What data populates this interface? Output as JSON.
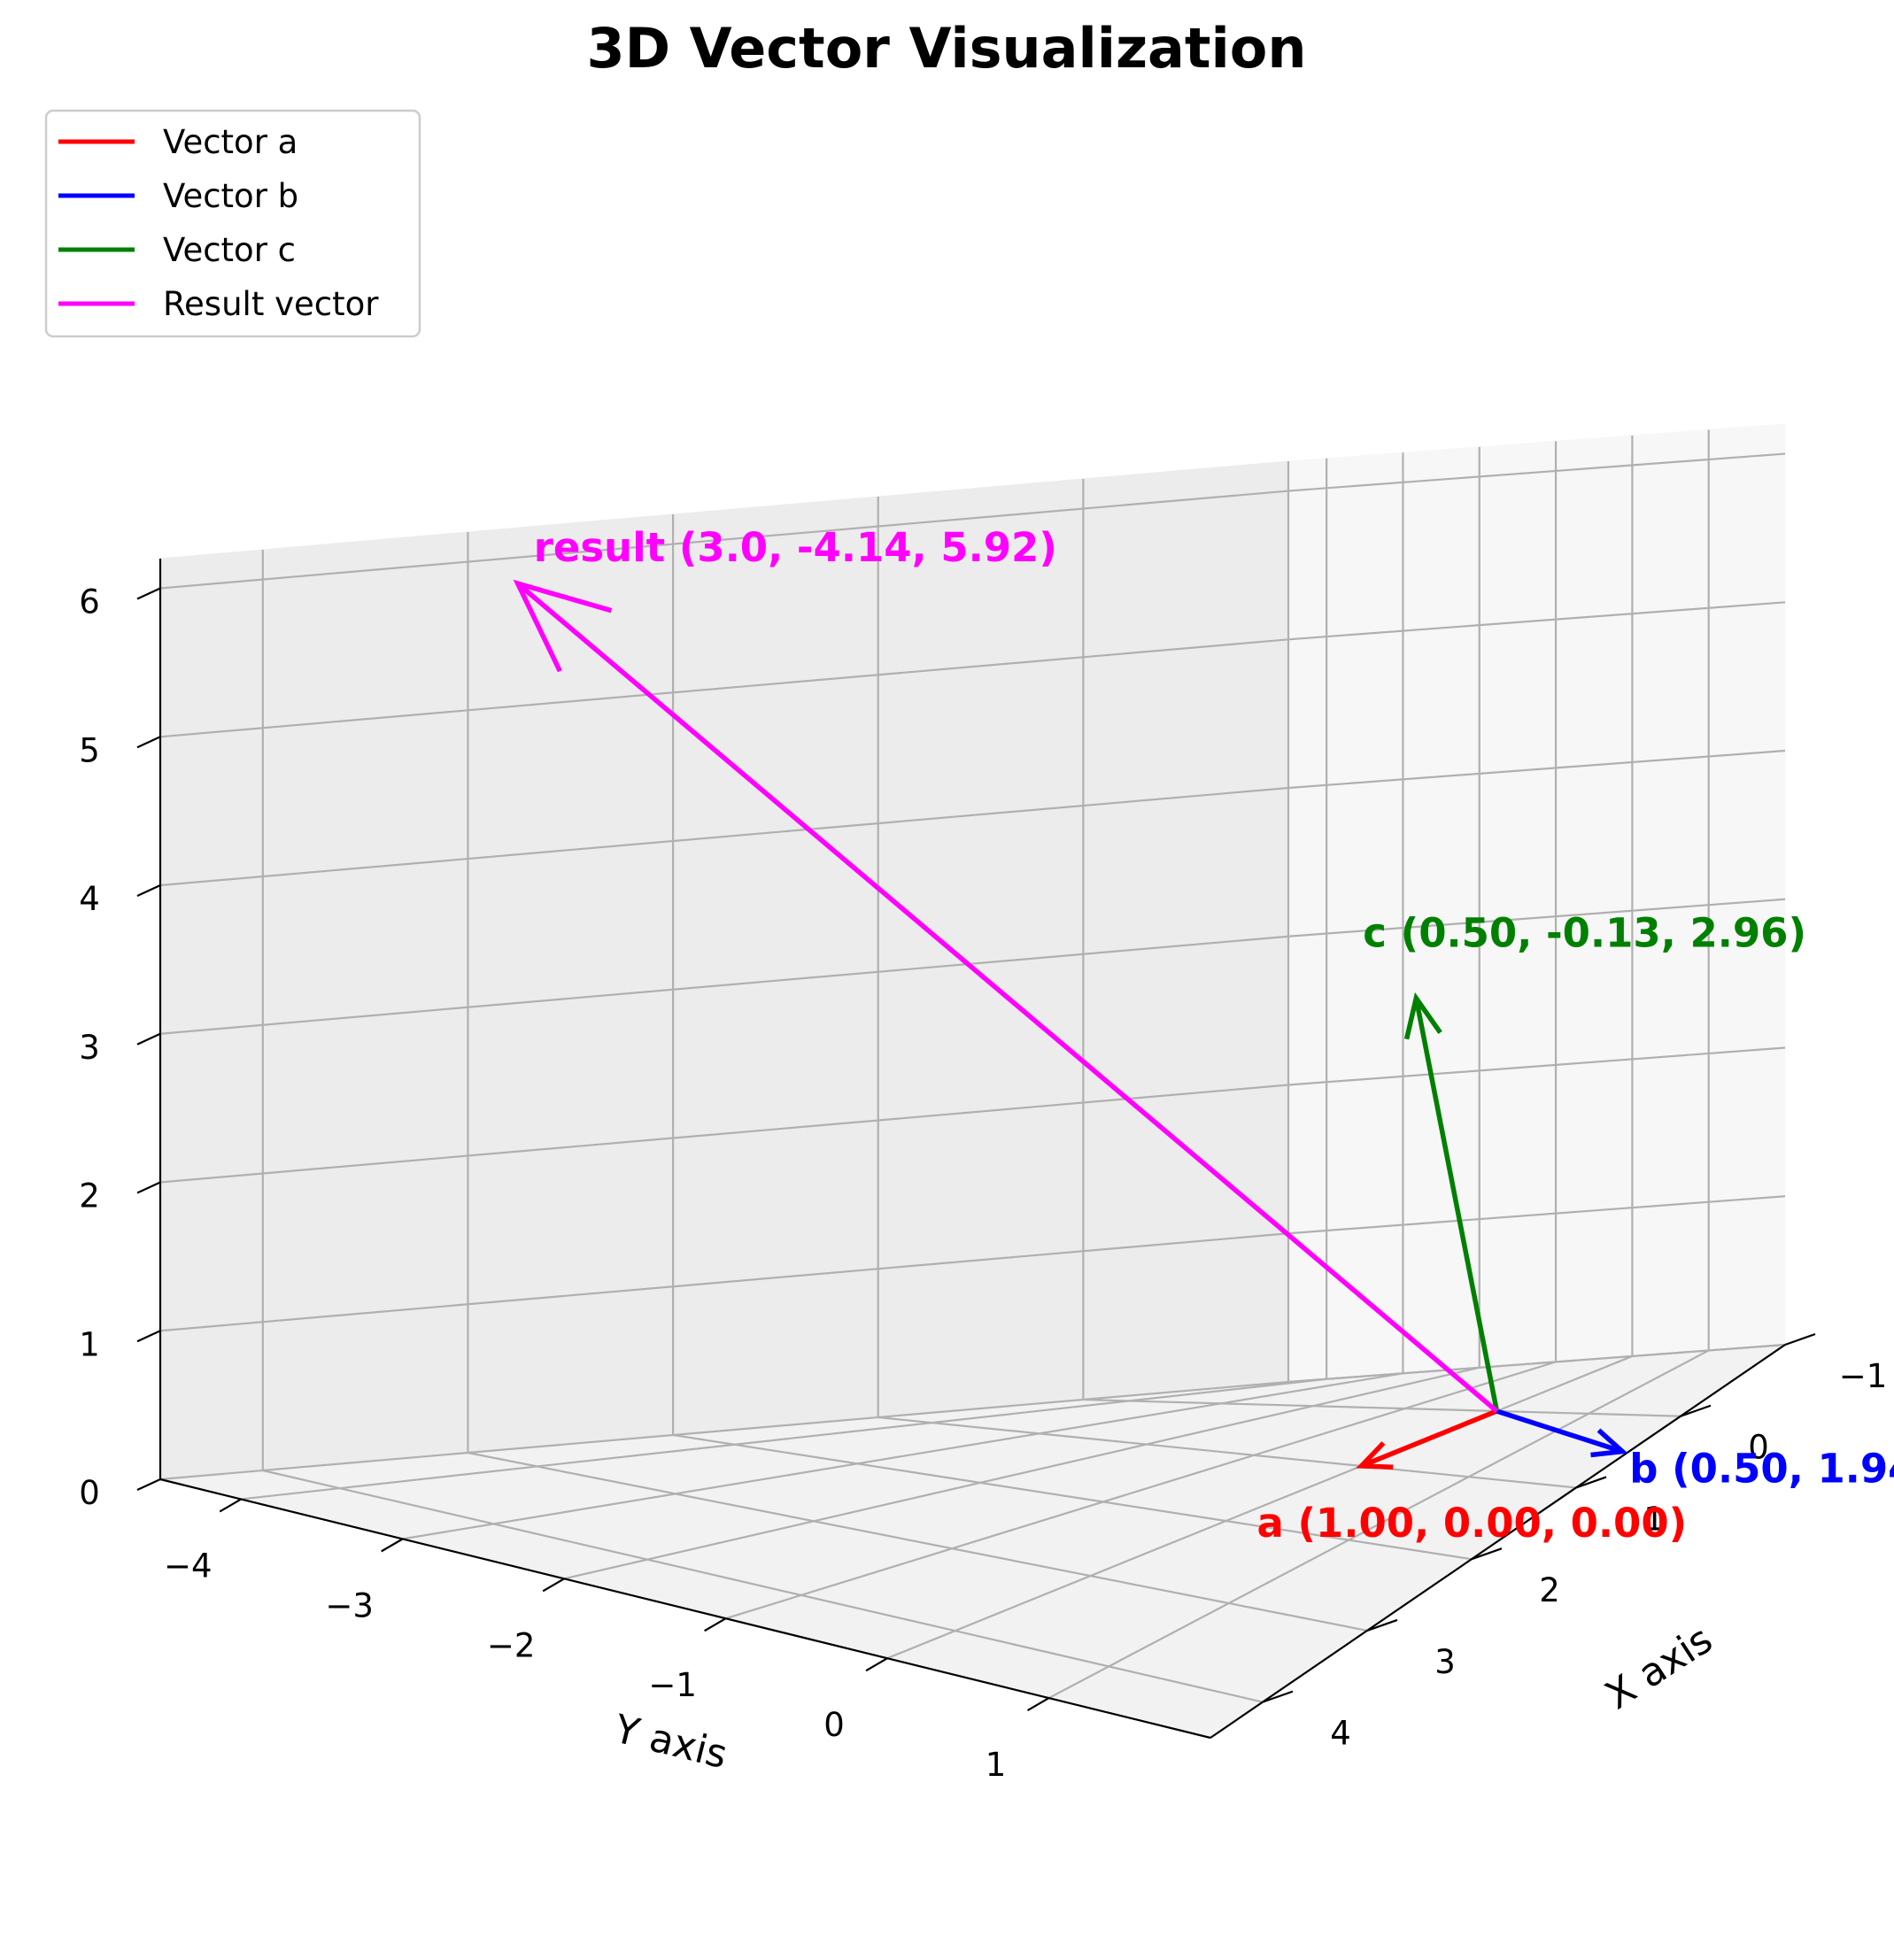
{
  "chart_data": {
    "type": "3d-vector",
    "title": "3D Vector Visualization",
    "xlabel": "X axis",
    "ylabel": "Y axis",
    "zlabel": "",
    "xlim": [
      -1,
      4.5
    ],
    "ylim": [
      -4.5,
      2
    ],
    "zlim": [
      0,
      6.2
    ],
    "x_ticks": [
      "−1",
      "0",
      "1",
      "2",
      "3",
      "4"
    ],
    "x_tick_values": [
      -1,
      0,
      1,
      2,
      3,
      4
    ],
    "y_ticks": [
      "−4",
      "−3",
      "−2",
      "−1",
      "0",
      "1"
    ],
    "y_tick_values": [
      -4,
      -3,
      -2,
      -1,
      0,
      1
    ],
    "z_ticks": [
      "0",
      "1",
      "2",
      "3",
      "4",
      "5",
      "6"
    ],
    "z_tick_values": [
      0,
      1,
      2,
      3,
      4,
      5,
      6
    ],
    "grid": true,
    "legend_position": "top-left",
    "series": [
      {
        "name": "Vector a",
        "color": "#ff0000",
        "origin": [
          0,
          0,
          0
        ],
        "vector": [
          1.0,
          0.0,
          0.0
        ],
        "label": "a (1.00, 0.00, 0.00)"
      },
      {
        "name": "Vector b",
        "color": "#0000ff",
        "origin": [
          0,
          0,
          0
        ],
        "vector": [
          0.5,
          1.94,
          0.0
        ],
        "label": "b (0.50, 1.94"
      },
      {
        "name": "Vector c",
        "color": "#008000",
        "origin": [
          0,
          0,
          0
        ],
        "vector": [
          0.5,
          -0.13,
          2.96
        ],
        "label": "c (0.50, -0.13, 2.96)"
      },
      {
        "name": "Result vector",
        "color": "#ff00ff",
        "origin": [
          0,
          0,
          0
        ],
        "vector": [
          3.0,
          -4.14,
          5.92
        ],
        "label": "result (3.0, -4.14, 5.92)"
      }
    ]
  }
}
